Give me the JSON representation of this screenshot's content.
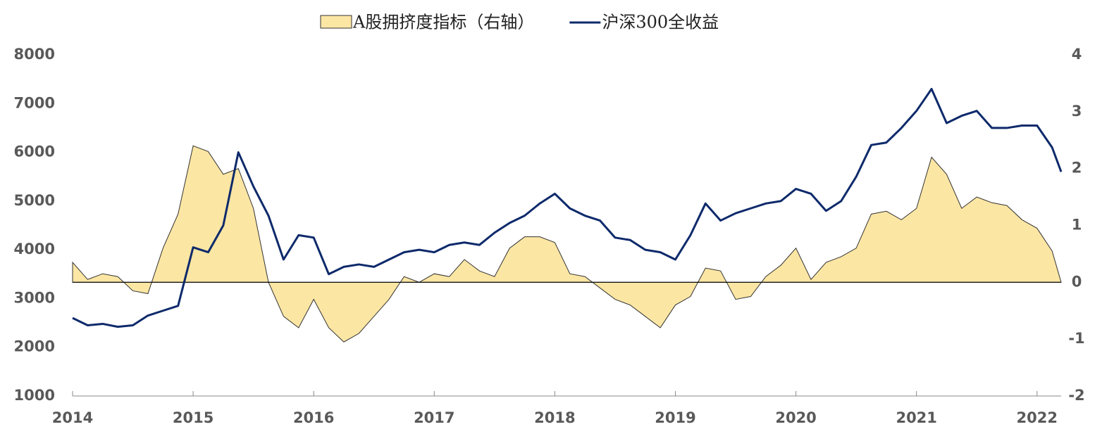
{
  "chart_data": {
    "type": "line",
    "legend": "top",
    "x": [
      2014,
      2014.125,
      2014.25,
      2014.375,
      2014.5,
      2014.625,
      2014.75,
      2014.875,
      2015,
      2015.125,
      2015.25,
      2015.375,
      2015.5,
      2015.625,
      2015.75,
      2015.875,
      2016,
      2016.125,
      2016.25,
      2016.375,
      2016.5,
      2016.625,
      2016.75,
      2016.875,
      2017,
      2017.125,
      2017.25,
      2017.375,
      2017.5,
      2017.625,
      2017.75,
      2017.875,
      2018,
      2018.125,
      2018.25,
      2018.375,
      2018.5,
      2018.625,
      2018.75,
      2018.875,
      2019,
      2019.125,
      2019.25,
      2019.375,
      2019.5,
      2019.625,
      2019.75,
      2019.875,
      2020,
      2020.125,
      2020.25,
      2020.375,
      2020.5,
      2020.625,
      2020.75,
      2020.875,
      2021,
      2021.125,
      2021.25,
      2021.375,
      2021.5,
      2021.625,
      2021.75,
      2021.875,
      2022,
      2022.125,
      2022.2
    ],
    "series": [
      {
        "name": "A股拥挤度指标（右轴）",
        "type": "area",
        "axis": "y2",
        "color": "#fce6a4",
        "edge_color": "#333333",
        "values": [
          0.35,
          0.05,
          0.15,
          0.1,
          -0.15,
          -0.2,
          0.6,
          1.2,
          2.4,
          2.3,
          1.9,
          2.0,
          1.3,
          0.0,
          -0.6,
          -0.8,
          -0.3,
          -0.8,
          -1.05,
          -0.9,
          -0.6,
          -0.3,
          0.1,
          0.0,
          0.15,
          0.1,
          0.4,
          0.2,
          0.1,
          0.6,
          0.8,
          0.8,
          0.7,
          0.15,
          0.1,
          -0.1,
          -0.3,
          -0.4,
          -0.6,
          -0.8,
          -0.4,
          -0.25,
          0.25,
          0.2,
          -0.3,
          -0.25,
          0.1,
          0.3,
          0.6,
          0.05,
          0.35,
          0.45,
          0.6,
          1.2,
          1.25,
          1.1,
          1.3,
          2.2,
          1.9,
          1.3,
          1.5,
          1.4,
          1.35,
          1.1,
          0.95,
          0.55,
          0.0
        ]
      },
      {
        "name": "沪深300全收益",
        "type": "line",
        "axis": "y",
        "color": "#0e2a6b",
        "values": [
          2600,
          2450,
          2480,
          2420,
          2450,
          2650,
          2750,
          2850,
          4050,
          3950,
          4500,
          6000,
          5300,
          4700,
          3800,
          4300,
          4250,
          3500,
          3650,
          3700,
          3650,
          3800,
          3950,
          4000,
          3950,
          4100,
          4150,
          4100,
          4350,
          4550,
          4700,
          4950,
          5150,
          4850,
          4700,
          4600,
          4250,
          4200,
          4000,
          3950,
          3800,
          4300,
          4950,
          4600,
          4750,
          4850,
          4950,
          5000,
          5250,
          5150,
          4800,
          5000,
          5500,
          6150,
          6200,
          6500,
          6850,
          7300,
          6600,
          6750,
          6850,
          6500,
          6500,
          6550,
          6550,
          6100,
          5600
        ]
      }
    ],
    "xlim": [
      2014,
      2022.2
    ],
    "xticks": [
      2014,
      2015,
      2016,
      2017,
      2018,
      2019,
      2020,
      2021,
      2022
    ],
    "ylim": [
      1000,
      8000
    ],
    "yticks": [
      1000,
      2000,
      3000,
      4000,
      5000,
      6000,
      7000,
      8000
    ],
    "y2lim": [
      -2,
      4
    ],
    "y2ticks": [
      -2,
      -1,
      0,
      1,
      2,
      3,
      4
    ]
  }
}
